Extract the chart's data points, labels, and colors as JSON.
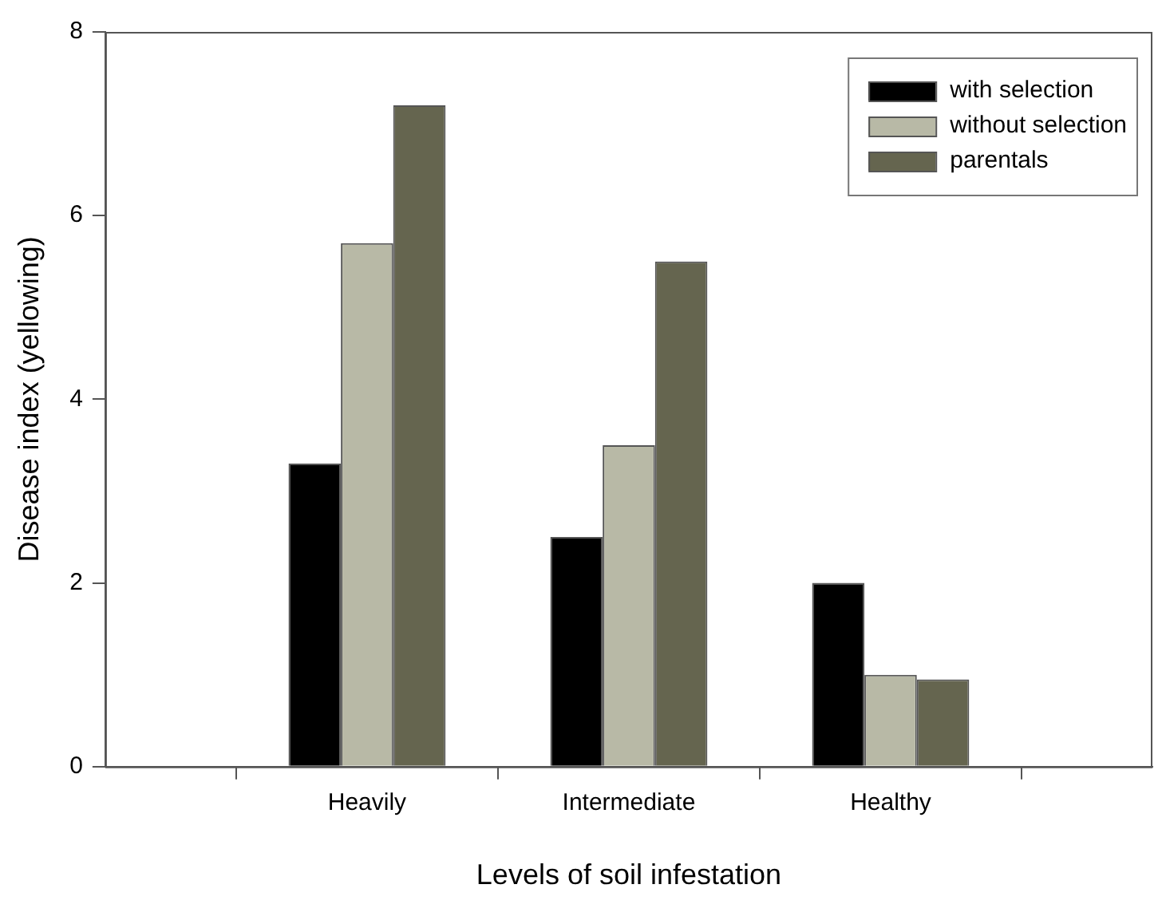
{
  "chart_data": {
    "type": "bar",
    "xlabel": "Levels of soil infestation",
    "ylabel": "Disease index (yellowing)",
    "categories": [
      null,
      "Heavily",
      "Intermediate",
      "Healthy",
      null
    ],
    "series": [
      {
        "name": "with selection",
        "color": "#000000",
        "values": [
          null,
          3.3,
          2.5,
          2.0,
          null
        ]
      },
      {
        "name": "without selection",
        "color": "#b8b9a6",
        "values": [
          null,
          5.7,
          3.5,
          1.0,
          null
        ]
      },
      {
        "name": "parentals",
        "color": "#65654f",
        "values": [
          null,
          7.2,
          5.5,
          0.95,
          null
        ]
      }
    ],
    "ylim": [
      0,
      8
    ],
    "yticks": [
      0,
      2,
      4,
      6,
      8
    ],
    "grid": false,
    "legend": "top right"
  }
}
